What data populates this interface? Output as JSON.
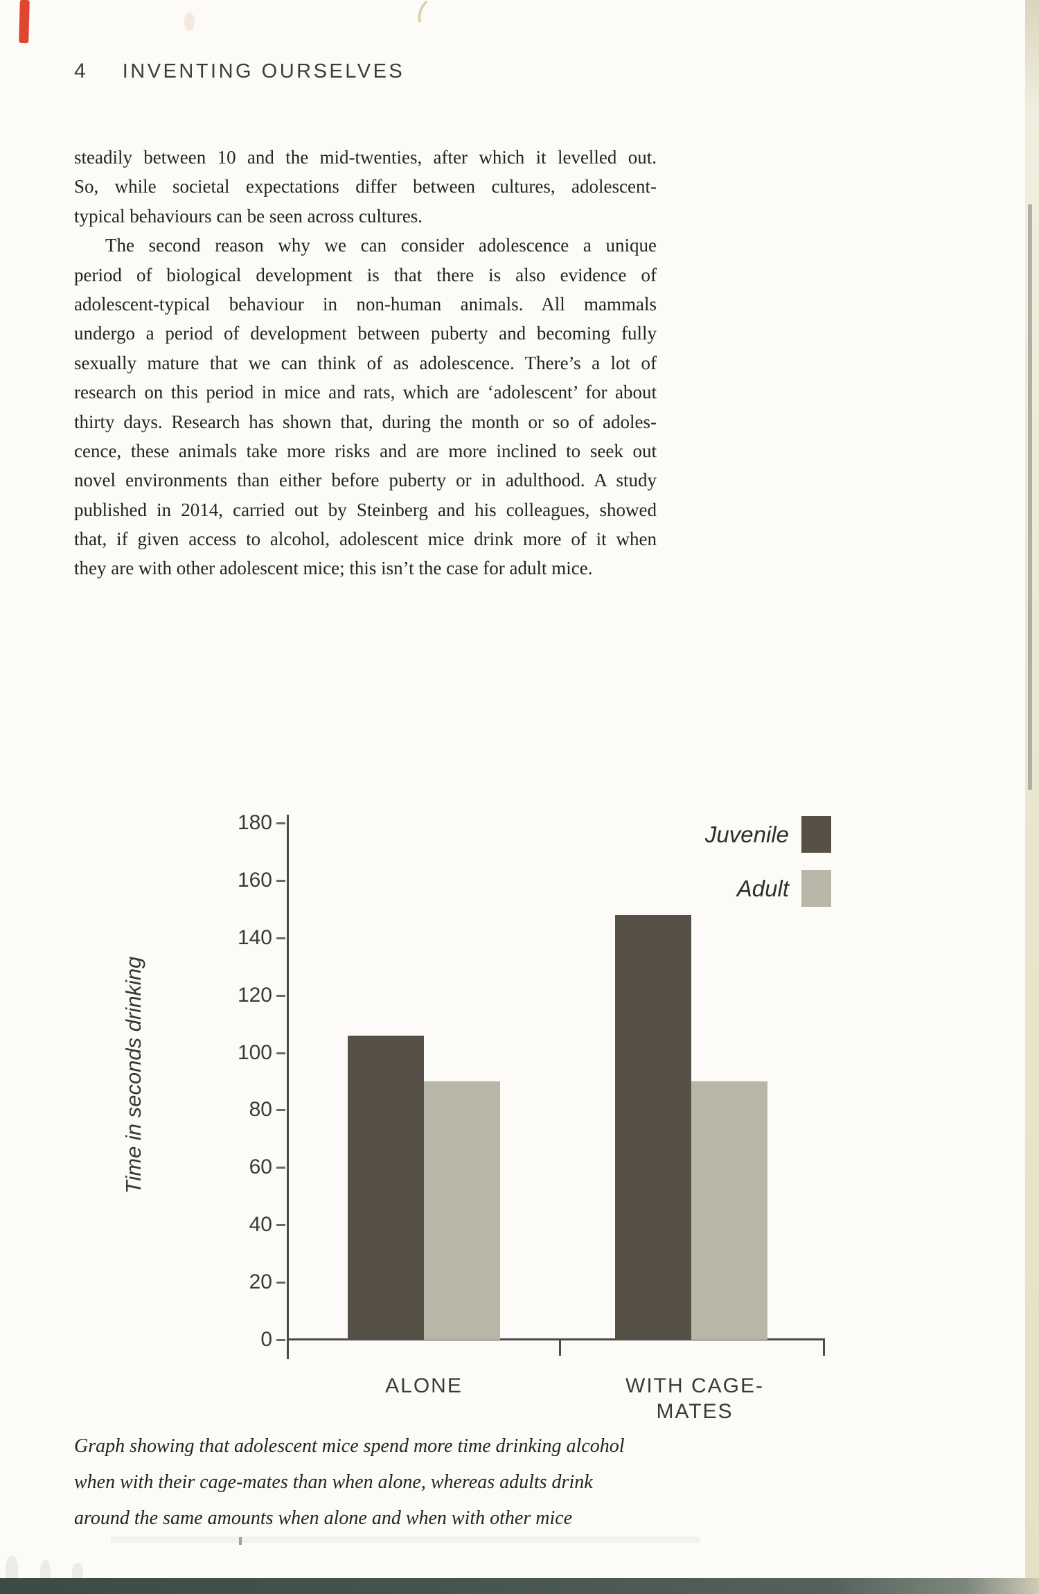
{
  "page": {
    "header": {
      "page_number": "4",
      "book_title": "INVENTING OURSELVES"
    },
    "body": {
      "lines": [
        {
          "text": "steadily between 10 and the mid-twenties, after which it levelled out.",
          "justify": true,
          "indent": false
        },
        {
          "text": "So, while societal expectations differ between cultures, adolescent-",
          "justify": true,
          "indent": false
        },
        {
          "text": "typical behaviours can be seen across cultures.",
          "justify": false,
          "indent": false
        },
        {
          "text": "The second reason why we can consider adolescence a unique",
          "justify": true,
          "indent": true
        },
        {
          "text": "period of biological development is that there is also evidence of",
          "justify": true,
          "indent": false
        },
        {
          "text": "adolescent-typical behaviour in non-human animals. All mammals",
          "justify": true,
          "indent": false
        },
        {
          "text": "undergo a period of development between puberty and becoming fully",
          "justify": true,
          "indent": false
        },
        {
          "text": "sexually mature that we can think of as adolescence. There’s a lot of",
          "justify": true,
          "indent": false
        },
        {
          "text": "research on this period in mice and rats, which are ‘adolescent’ for about",
          "justify": true,
          "indent": false
        },
        {
          "text": "thirty days. Research has shown that, during the month or so of adoles-",
          "justify": true,
          "indent": false
        },
        {
          "text": "cence, these animals take more risks and are more inclined to seek out",
          "justify": true,
          "indent": false
        },
        {
          "text": "novel environments than either before puberty or in adulthood. A study",
          "justify": true,
          "indent": false
        },
        {
          "text": "published in 2014, carried out by Steinberg and his colleagues, showed",
          "justify": true,
          "indent": false
        },
        {
          "text": "that, if given access to alcohol, adolescent mice drink more of it when",
          "justify": true,
          "indent": false
        },
        {
          "text": "they are with other adolescent mice; this isn’t the case for adult mice.",
          "justify": false,
          "indent": false
        }
      ]
    },
    "caption": {
      "lines": [
        "Graph showing that adolescent mice spend more time drinking alcohol",
        "when with their cage-mates than when alone, whereas adults drink",
        "around the same amounts when alone and when with other mice"
      ]
    }
  },
  "chart_data": {
    "type": "bar",
    "title": "",
    "categories": [
      "ALONE",
      "WITH CAGE-MATES"
    ],
    "series": [
      {
        "name": "Juvenile",
        "values": [
          106,
          148
        ],
        "color": "#575046"
      },
      {
        "name": "Adult",
        "values": [
          90,
          90
        ],
        "color": "#b8b6a7"
      }
    ],
    "xlabel": "",
    "ylabel": "Time in seconds drinking",
    "ylim": [
      0,
      180
    ],
    "ytick_step": 20,
    "grid": false,
    "legend_position": "top-right"
  },
  "colors": {
    "body_text": "#262626",
    "chart_text": "#3a3a3a",
    "page_bg": "#fcfbf8",
    "bottom_band": "#44524c",
    "red_mark": "#e2452e",
    "page_edge": "#e8e4ca"
  }
}
